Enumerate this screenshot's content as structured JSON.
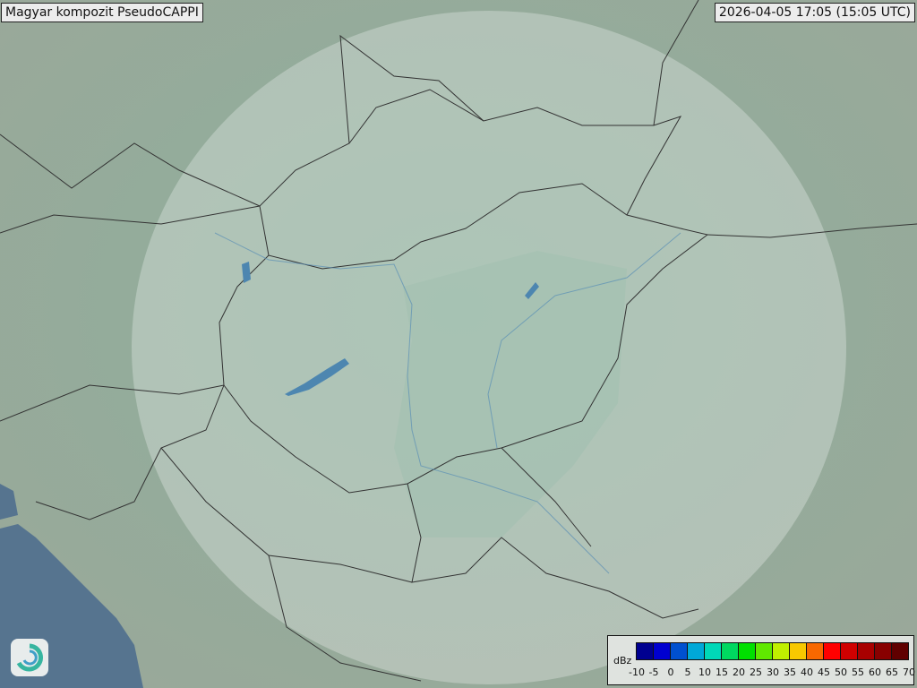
{
  "header": {
    "title": "Magyar kompozit  PseudoCAPPI",
    "timestamp": "2026-04-05 17:05 (15:05 UTC)"
  },
  "legend": {
    "unit": "dBz",
    "ticks": [
      "-10",
      "-5",
      "0",
      "5",
      "10",
      "15",
      "20",
      "25",
      "30",
      "35",
      "40",
      "45",
      "50",
      "55",
      "60",
      "65",
      "70"
    ],
    "colors": [
      "#000090",
      "#0000d0",
      "#0050d0",
      "#00a8d8",
      "#00d8b8",
      "#00d860",
      "#00e000",
      "#60e800",
      "#c0f000",
      "#f8c800",
      "#f86800",
      "#ff0000",
      "#d00000",
      "#a80000",
      "#880000",
      "#600000"
    ]
  },
  "map": {
    "terrain_color": "#8fa595",
    "sea_color": "#56748f",
    "radar_coverage_color": "#ffffff"
  },
  "logo": {
    "icon": "swirl-logo-icon"
  }
}
